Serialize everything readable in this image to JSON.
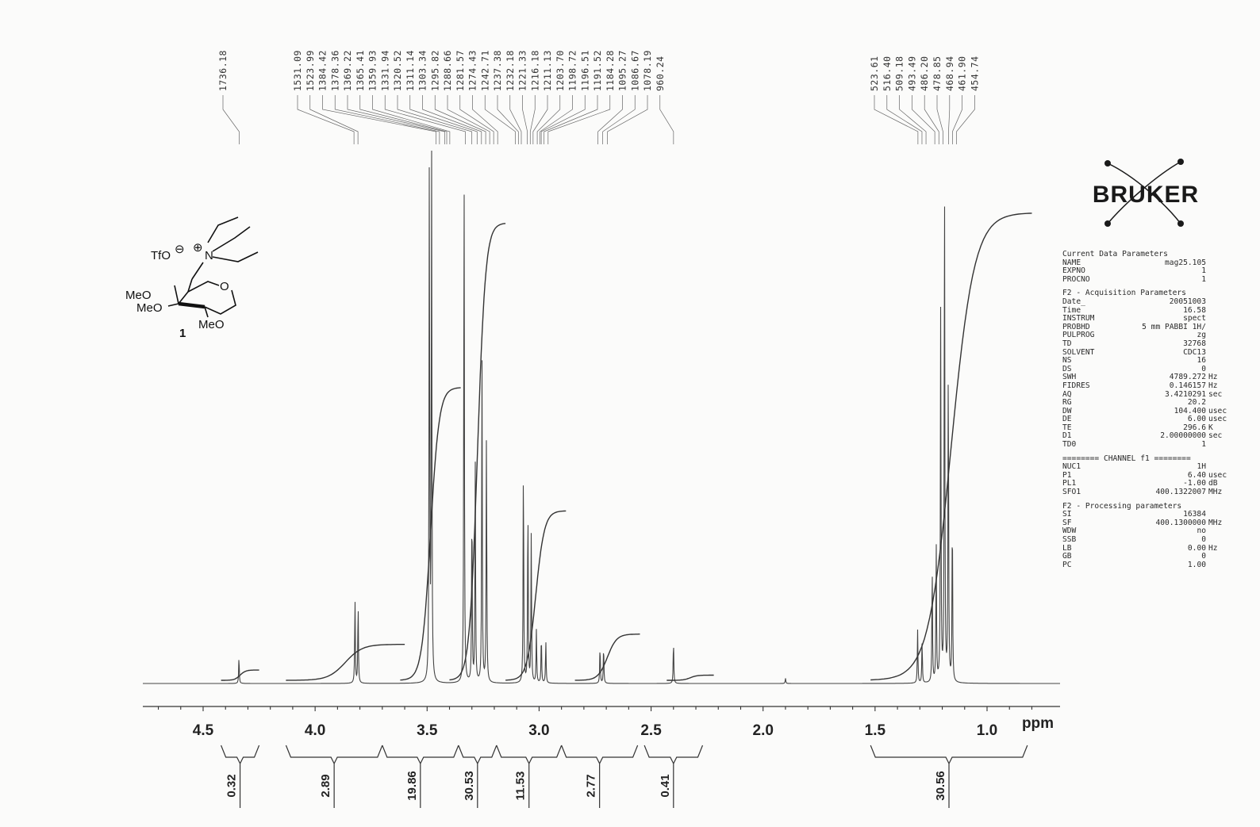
{
  "chart_data": {
    "type": "line",
    "title": "",
    "xlabel": "ppm",
    "ylabel": "",
    "x_axis": {
      "reversed": true,
      "ticks": [
        4.5,
        4.0,
        3.5,
        3.0,
        2.5,
        2.0,
        1.5,
        1.0
      ],
      "tick_labels": [
        "4.5",
        "4.0",
        "3.5",
        "3.0",
        "2.5",
        "2.0",
        "1.5",
        "1.0"
      ]
    },
    "ylim": [
      0,
      1
    ],
    "grid": false,
    "peaks_ppm": [
      {
        "ppm": 4.34,
        "intensity": 0.05
      },
      {
        "ppm": 3.822,
        "intensity": 0.16
      },
      {
        "ppm": 3.808,
        "intensity": 0.15
      },
      {
        "ppm": 3.49,
        "intensity": 1.0
      },
      {
        "ppm": 3.48,
        "intensity": 1.0
      },
      {
        "ppm": 3.335,
        "intensity": 1.0
      },
      {
        "ppm": 3.3,
        "intensity": 0.34
      },
      {
        "ppm": 3.285,
        "intensity": 0.41
      },
      {
        "ppm": 3.255,
        "intensity": 0.61
      },
      {
        "ppm": 3.235,
        "intensity": 0.47
      },
      {
        "ppm": 3.07,
        "intensity": 0.42
      },
      {
        "ppm": 3.05,
        "intensity": 0.34
      },
      {
        "ppm": 3.035,
        "intensity": 0.28
      },
      {
        "ppm": 3.012,
        "intensity": 0.1
      },
      {
        "ppm": 2.99,
        "intensity": 0.09
      },
      {
        "ppm": 2.97,
        "intensity": 0.08
      },
      {
        "ppm": 2.728,
        "intensity": 0.07
      },
      {
        "ppm": 2.712,
        "intensity": 0.07
      },
      {
        "ppm": 2.4,
        "intensity": 0.08
      },
      {
        "ppm": 1.9,
        "intensity": 0.01
      },
      {
        "ppm": 1.31,
        "intensity": 0.1
      },
      {
        "ppm": 1.29,
        "intensity": 0.08
      },
      {
        "ppm": 1.245,
        "intensity": 0.22
      },
      {
        "ppm": 1.227,
        "intensity": 0.26
      },
      {
        "ppm": 1.207,
        "intensity": 0.71
      },
      {
        "ppm": 1.19,
        "intensity": 0.96
      },
      {
        "ppm": 1.173,
        "intensity": 0.62
      },
      {
        "ppm": 1.155,
        "intensity": 0.32
      }
    ],
    "integration_curves": [
      {
        "ppm_range": [
          4.42,
          4.25
        ],
        "rise": 0.02
      },
      {
        "ppm_range": [
          4.13,
          3.6
        ],
        "rise": 0.07
      },
      {
        "ppm_range": [
          3.62,
          3.35
        ],
        "rise": 0.57
      },
      {
        "ppm_range": [
          3.4,
          3.15
        ],
        "rise": 0.89
      },
      {
        "ppm_range": [
          3.15,
          2.88
        ],
        "rise": 0.33
      },
      {
        "ppm_range": [
          2.84,
          2.55
        ],
        "rise": 0.09
      },
      {
        "ppm_range": [
          2.43,
          2.22
        ],
        "rise": 0.01
      },
      {
        "ppm_range": [
          1.52,
          0.8
        ],
        "rise": 0.91
      }
    ],
    "integrals": [
      {
        "label": "0.32",
        "range": [
          4.42,
          4.25
        ]
      },
      {
        "label": "2.89",
        "range": [
          4.13,
          3.7
        ]
      },
      {
        "label": "19.86",
        "range": [
          3.7,
          3.36
        ]
      },
      {
        "label": "30.53",
        "range": [
          3.36,
          3.19
        ]
      },
      {
        "label": "11.53",
        "range": [
          3.19,
          2.9
        ]
      },
      {
        "label": "2.77",
        "range": [
          2.9,
          2.56
        ]
      },
      {
        "label": "0.41",
        "range": [
          2.53,
          2.27
        ]
      },
      {
        "label": "30.56",
        "range": [
          1.52,
          0.82
        ]
      }
    ],
    "peak_list_hz": [
      "1736.18",
      "1531.09",
      "1523.99",
      "1384.42",
      "1378.36",
      "1369.22",
      "1365.41",
      "1359.93",
      "1331.94",
      "1320.52",
      "1311.14",
      "1303.34",
      "1295.82",
      "1288.66",
      "1281.57",
      "1274.43",
      "1242.71",
      "1237.38",
      "1232.18",
      "1221.33",
      "1216.18",
      "1211.13",
      "1203.70",
      "1198.72",
      "1196.51",
      "1191.52",
      "1184.28",
      "1095.27",
      "1086.67",
      "1078.19",
      "960.24",
      "523.61",
      "516.40",
      "509.18",
      "493.49",
      "486.20",
      "478.85",
      "468.94",
      "461.90",
      "454.74"
    ]
  },
  "structure": {
    "compound_number": "1",
    "labels": [
      "TfO",
      "N",
      "O",
      "MeO",
      "MeO",
      "MeO"
    ],
    "charges": [
      "⊖",
      "⊕"
    ]
  },
  "logo": {
    "text": "BRUKER"
  },
  "parameters": {
    "sections": [
      {
        "heading": "Current Data Parameters",
        "rows": [
          {
            "name": "NAME",
            "value": "mag25.105",
            "unit": ""
          },
          {
            "name": "EXPNO",
            "value": "1",
            "unit": ""
          },
          {
            "name": "PROCNO",
            "value": "1",
            "unit": ""
          }
        ]
      },
      {
        "heading": "F2 - Acquisition Parameters",
        "rows": [
          {
            "name": "Date_",
            "value": "20051003",
            "unit": ""
          },
          {
            "name": "Time",
            "value": "16.58",
            "unit": ""
          },
          {
            "name": "INSTRUM",
            "value": "spect",
            "unit": ""
          },
          {
            "name": "PROBHD",
            "value": "5 mm PABBI 1H/",
            "unit": ""
          },
          {
            "name": "PULPROG",
            "value": "zg",
            "unit": ""
          },
          {
            "name": "TD",
            "value": "32768",
            "unit": ""
          },
          {
            "name": "SOLVENT",
            "value": "CDC13",
            "unit": ""
          },
          {
            "name": "NS",
            "value": "16",
            "unit": ""
          },
          {
            "name": "DS",
            "value": "0",
            "unit": ""
          },
          {
            "name": "SWH",
            "value": "4789.272",
            "unit": "Hz"
          },
          {
            "name": "FIDRES",
            "value": "0.146157",
            "unit": "Hz"
          },
          {
            "name": "AQ",
            "value": "3.4210291",
            "unit": "sec"
          },
          {
            "name": "RG",
            "value": "20.2",
            "unit": ""
          },
          {
            "name": "DW",
            "value": "104.400",
            "unit": "usec"
          },
          {
            "name": "DE",
            "value": "6.00",
            "unit": "usec"
          },
          {
            "name": "TE",
            "value": "296.6",
            "unit": "K"
          },
          {
            "name": "D1",
            "value": "2.00000000",
            "unit": "sec"
          },
          {
            "name": "TD0",
            "value": "1",
            "unit": ""
          }
        ]
      },
      {
        "heading": "======== CHANNEL f1 ========",
        "rows": [
          {
            "name": "NUC1",
            "value": "1H",
            "unit": ""
          },
          {
            "name": "P1",
            "value": "6.40",
            "unit": "usec"
          },
          {
            "name": "PL1",
            "value": "-1.00",
            "unit": "dB"
          },
          {
            "name": "SFO1",
            "value": "400.1322007",
            "unit": "MHz"
          }
        ]
      },
      {
        "heading": "F2 - Processing parameters",
        "rows": [
          {
            "name": "SI",
            "value": "16384",
            "unit": ""
          },
          {
            "name": "SF",
            "value": "400.1300000",
            "unit": "MHz"
          },
          {
            "name": "WDW",
            "value": "no",
            "unit": ""
          },
          {
            "name": "SSB",
            "value": "0",
            "unit": ""
          },
          {
            "name": "LB",
            "value": "0.00",
            "unit": "Hz"
          },
          {
            "name": "GB",
            "value": "0",
            "unit": ""
          },
          {
            "name": "PC",
            "value": "1.00",
            "unit": ""
          }
        ]
      }
    ]
  }
}
